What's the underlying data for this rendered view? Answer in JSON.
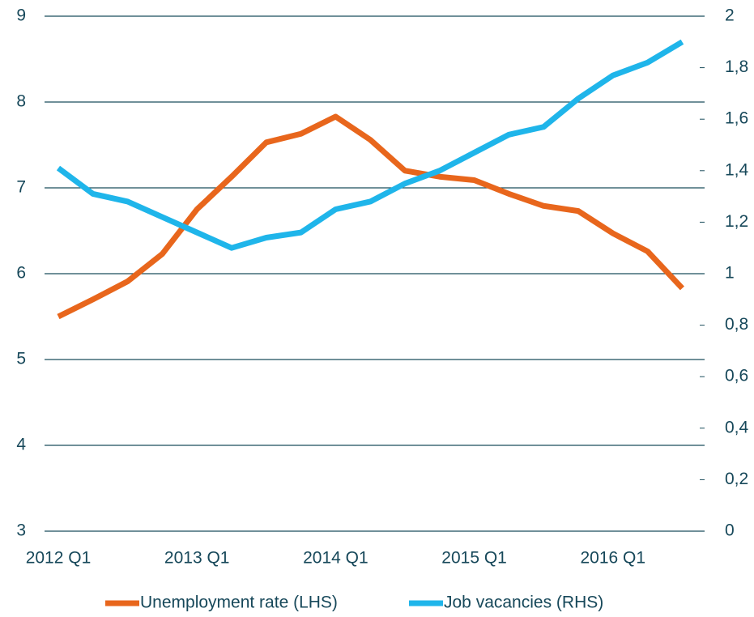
{
  "chart_data": {
    "type": "line",
    "categories": [
      "2012 Q1",
      null,
      null,
      null,
      "2013 Q1",
      null,
      null,
      null,
      "2014 Q1",
      null,
      null,
      null,
      "2015 Q1",
      null,
      null,
      null,
      "2016 Q1",
      null,
      null
    ],
    "series": [
      {
        "name": "Unemployment rate (LHS)",
        "color": "#e8661c",
        "axis": "y",
        "values": [
          5.5,
          5.7,
          5.91,
          6.23,
          6.75,
          7.13,
          7.53,
          7.63,
          7.83,
          7.56,
          7.2,
          7.13,
          7.09,
          6.93,
          6.79,
          6.73,
          6.47,
          6.26,
          5.83
        ]
      },
      {
        "name": "Job vacancies (RHS)",
        "color": "#1fb5ea",
        "axis": "y2",
        "values": [
          1.41,
          1.31,
          1.28,
          1.22,
          1.16,
          1.1,
          1.14,
          1.16,
          1.25,
          1.28,
          1.35,
          1.4,
          1.47,
          1.54,
          1.57,
          1.68,
          1.77,
          1.82,
          1.9
        ]
      }
    ],
    "ylim": [
      3,
      9
    ],
    "yticks": [
      3,
      4,
      5,
      6,
      7,
      8,
      9
    ],
    "y2lim": [
      0,
      2
    ],
    "y2ticks": [
      0,
      {
        "value": 0.2,
        "label": "0,2"
      },
      {
        "value": 0.4,
        "label": "0,4"
      },
      {
        "value": 0.6,
        "label": "0,6"
      },
      {
        "value": 0.8,
        "label": "0,8"
      },
      1,
      {
        "value": 1.2,
        "label": "1,2"
      },
      {
        "value": 1.4,
        "label": "1,4"
      },
      {
        "value": 1.6,
        "label": "1,6"
      },
      {
        "value": 1.8,
        "label": "1,8"
      },
      2
    ],
    "grid": true,
    "legend": "bottom"
  }
}
